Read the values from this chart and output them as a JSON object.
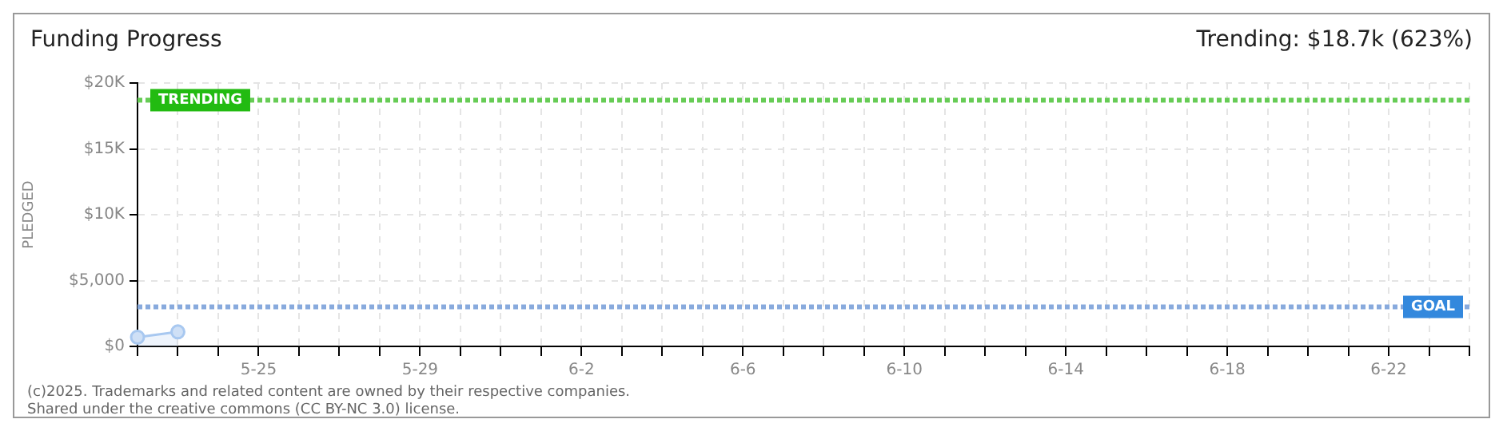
{
  "chart_data": {
    "type": "area",
    "title": "Funding Progress",
    "subtitle": "Trending: $18.7k (623%)",
    "ylabel": "PLEDGED",
    "categories": [
      null,
      null,
      null,
      "5-25",
      null,
      null,
      null,
      "5-29",
      null,
      null,
      null,
      "6-2",
      null,
      null,
      null,
      "6-6",
      null,
      null,
      null,
      "6-10",
      null,
      null,
      null,
      "6-14",
      null,
      null,
      null,
      "6-18",
      null,
      null,
      null,
      "6-22",
      null,
      null
    ],
    "series": [
      {
        "color": "#a8c8f0",
        "values": [
          700,
          1100,
          null,
          null,
          null,
          null,
          null,
          null,
          null,
          null,
          null,
          null,
          null,
          null,
          null,
          null,
          null,
          null,
          null,
          null,
          null,
          null,
          null,
          null,
          null,
          null,
          null,
          null,
          null,
          null,
          null,
          null,
          null,
          null
        ]
      }
    ],
    "ylim": [
      0,
      20000
    ],
    "yticks": [
      {
        "value": 0,
        "label": "$0"
      },
      {
        "value": 5000,
        "label": "$5,000"
      },
      {
        "value": 10000,
        "label": "$10K"
      },
      {
        "value": 15000,
        "label": "$15K"
      },
      {
        "value": 20000,
        "label": "$20K"
      }
    ],
    "ref_lines": [
      {
        "axis": "y",
        "value": 18700,
        "label": "TRENDING",
        "color": "#66cc55",
        "line_style": "dotted"
      },
      {
        "axis": "y",
        "value": 3000,
        "label": "GOAL",
        "color": "#88aadd",
        "line_style": "dotted"
      }
    ],
    "grid": true,
    "legend": false,
    "marker": "circle",
    "annotations": [
      "(c)2025. Trademarks and related content are owned by their respective companies.",
      "Shared under the creative commons (CC BY-NC 3.0) license."
    ]
  }
}
